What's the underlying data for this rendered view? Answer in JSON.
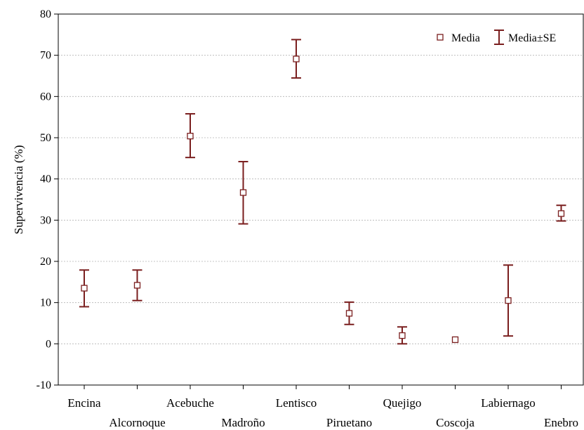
{
  "chart_data": {
    "type": "scatter",
    "title": "",
    "xlabel": "",
    "ylabel": "Supervivencia (%)",
    "ylim": [
      -10,
      80
    ],
    "yticks": [
      -10,
      0,
      10,
      20,
      30,
      40,
      50,
      60,
      70,
      80
    ],
    "grid": true,
    "legend_position": "top-right",
    "categories": [
      "Encina",
      "Alcornoque",
      "Acebuche",
      "Madroño",
      "Lentisco",
      "Piruetano",
      "Quejigo",
      "Coscoja",
      "Labiernago",
      "Enebro"
    ],
    "series": [
      {
        "name": "Media",
        "marker": "open-square",
        "values": [
          13.5,
          14.2,
          50.4,
          36.7,
          69.1,
          7.4,
          2.0,
          1.0,
          10.5,
          31.6
        ]
      },
      {
        "name": "Media±SE",
        "marker": "error-bar",
        "lower": [
          9.0,
          10.5,
          45.2,
          29.1,
          64.5,
          4.7,
          0.0,
          1.0,
          1.9,
          29.8
        ],
        "upper": [
          17.9,
          17.9,
          55.8,
          44.2,
          73.8,
          10.1,
          4.1,
          1.0,
          19.1,
          33.6
        ]
      }
    ],
    "colors": {
      "marker": "#7a1e1e",
      "axis": "#000000",
      "grid": "#b4b4b4"
    }
  }
}
